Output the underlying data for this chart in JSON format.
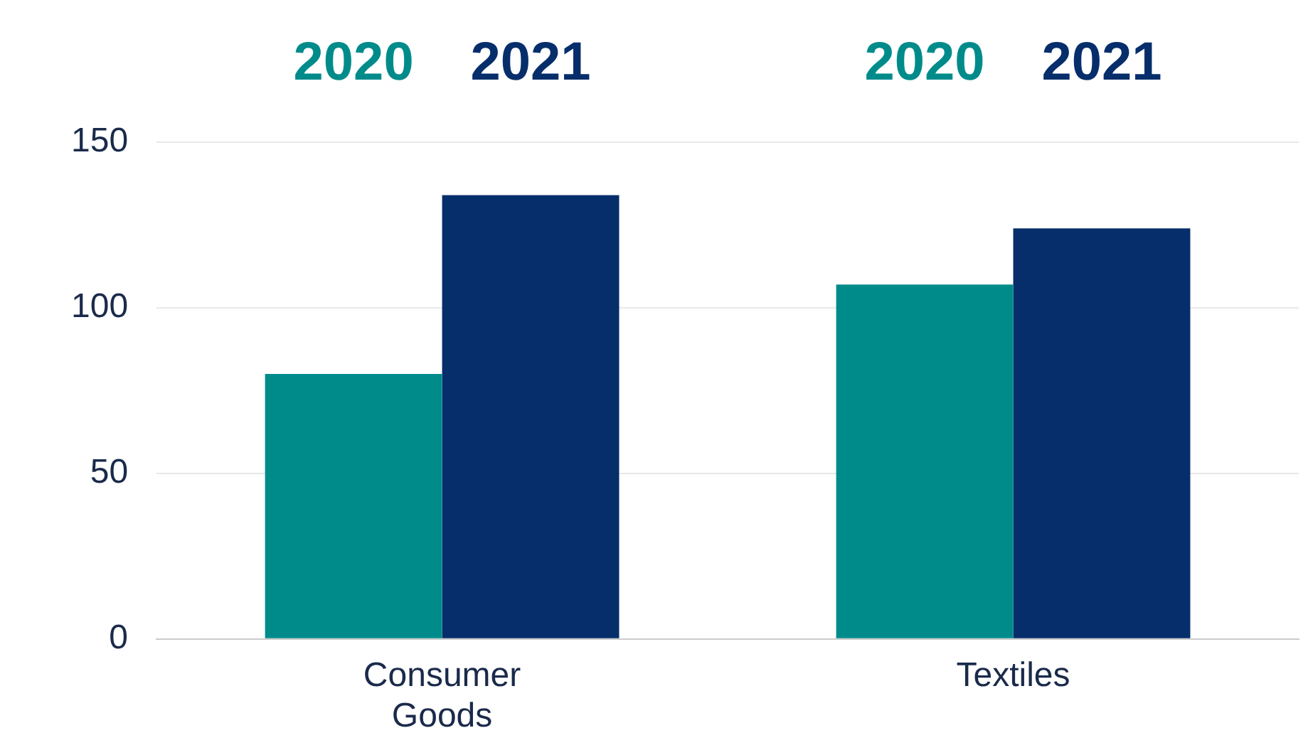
{
  "chart_data": {
    "type": "bar",
    "categories": [
      "Consumer Goods",
      "Textiles"
    ],
    "series": [
      {
        "name": "2020",
        "color": "#008b8b",
        "values": [
          80,
          107
        ]
      },
      {
        "name": "2021",
        "color": "#062e6b",
        "values": [
          134,
          124
        ]
      }
    ],
    "ylim": [
      0,
      150
    ],
    "yticks": [
      0,
      50,
      100,
      150
    ],
    "grid": "y",
    "legend": false
  }
}
